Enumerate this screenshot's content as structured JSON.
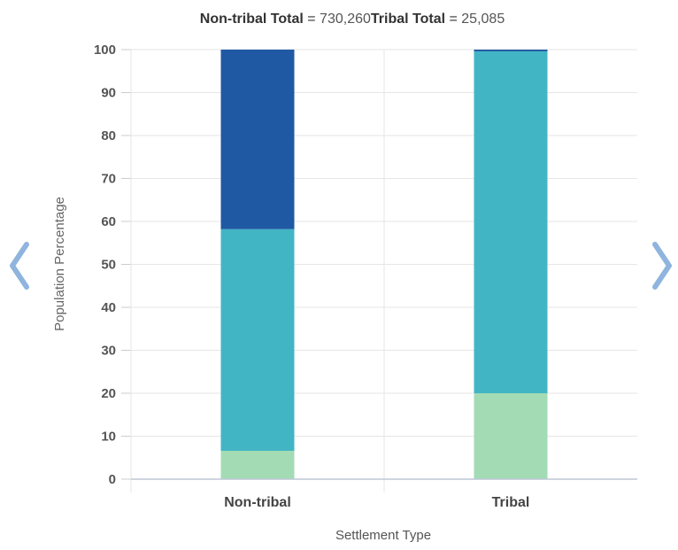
{
  "header": {
    "items": [
      {
        "label": "Non-tribal Total",
        "separator": " = ",
        "value": "730,260"
      },
      {
        "label": "Tribal Total",
        "separator": " = ",
        "value": "25,085"
      }
    ]
  },
  "nav": {
    "prev_icon": "chevron-left-icon",
    "next_icon": "chevron-right-icon",
    "color": "#8fb4de"
  },
  "chart_data": {
    "type": "bar",
    "stacked": true,
    "categories": [
      "Non-tribal",
      "Tribal"
    ],
    "series": [
      {
        "color": "#a3dbb4",
        "values": [
          6.6,
          20.0
        ]
      },
      {
        "color": "#42b5c5",
        "values": [
          51.6,
          79.6
        ]
      },
      {
        "color": "#2059a3",
        "values": [
          41.8,
          0.4
        ]
      }
    ],
    "xlabel": "Settlement Type",
    "ylabel": "Population Percentage",
    "ylim": [
      0,
      100
    ],
    "yticks": [
      0,
      10,
      20,
      30,
      40,
      50,
      60,
      70,
      80,
      90,
      100
    ],
    "grid": true
  }
}
